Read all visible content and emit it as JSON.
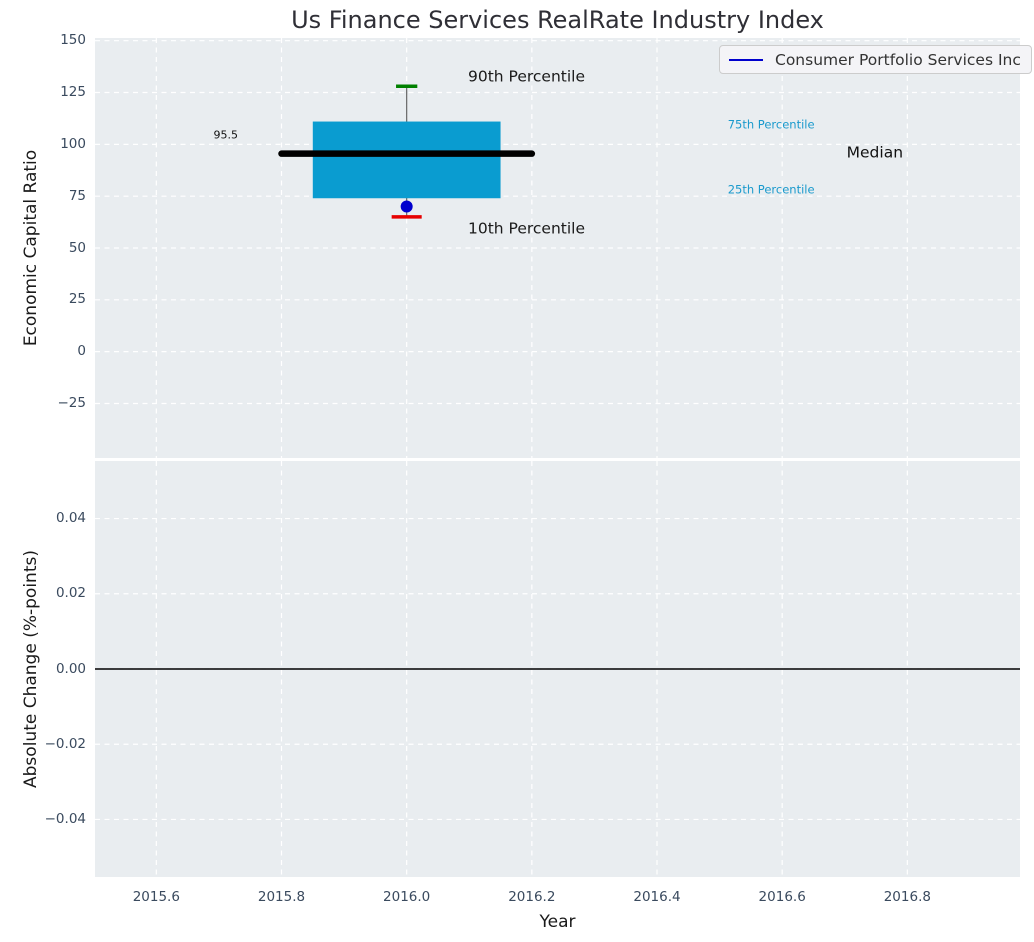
{
  "colors": {
    "figure_bg": "#ffffff",
    "axes_bg": "#e9edf0",
    "grid": "#ffffff",
    "tick_label": "#3a4a5e",
    "axis_label": "#1a1a1a",
    "title": "#2f2f36",
    "box_fill": "#0a9cd0",
    "median_line": "#000000",
    "whisker": "#666666",
    "p90_cap": "#008000",
    "p10_cap": "#e60000",
    "company_marker": "#0000cd",
    "zero_line": "#000000",
    "legend_bg": "#f4f4f7",
    "legend_border": "#cccccc",
    "legend_text": "#333333",
    "percentile_small_label": "#1a9acd",
    "annotation_dark": "#1a1a1a"
  },
  "legend": {
    "label": "Consumer Portfolio Services Inc",
    "position": "upper right"
  },
  "chart_data": {
    "type": "box",
    "title": "Us Finance Services RealRate Industry Index",
    "xlabel": "Year",
    "xlim": [
      2015.502,
      2016.98
    ],
    "x_ticks": [
      2015.6,
      2015.8,
      2016.0,
      2016.2,
      2016.4,
      2016.6,
      2016.8
    ],
    "x_tick_labels": [
      "2015.6",
      "2015.8",
      "2016.0",
      "2016.2",
      "2016.4",
      "2016.6",
      "2016.8"
    ],
    "grid": "white dashed, both axes",
    "panels": [
      {
        "name": "economic-capital-ratio",
        "ylabel": "Economic Capital Ratio",
        "ylim": [
          -51.3,
          151.3
        ],
        "y_ticks": [
          150,
          125,
          100,
          75,
          50,
          25,
          0,
          -25
        ],
        "y_tick_labels": [
          "150",
          "125",
          "100",
          "75",
          "50",
          "25",
          "0",
          "−25"
        ],
        "distribution": {
          "year": 2016.0,
          "p90": 128,
          "p75": 111,
          "median": 95.5,
          "p25": 74,
          "p10": 65,
          "company_value": 70,
          "box_half_width": 0.15,
          "median_half_width": 0.2,
          "p90_cap_half_width": 0.017,
          "p10_cap_half_width": 0.024
        },
        "annotations": [
          {
            "text": "95.5",
            "x": 2015.711,
            "y": 104.5,
            "align": "center",
            "size": "xsmall",
            "color": "#111111"
          },
          {
            "text": "90th Percentile",
            "x": 2016.098,
            "y": 132.5,
            "align": "left",
            "size": "medium",
            "color": "#1a1a1a"
          },
          {
            "text": "10th Percentile",
            "x": 2016.098,
            "y": 59.2,
            "align": "left",
            "size": "medium",
            "color": "#1a1a1a"
          },
          {
            "text": "75th Percentile",
            "x": 2016.513,
            "y": 109.2,
            "align": "left",
            "size": "small",
            "color": "#1a9acd"
          },
          {
            "text": "25th Percentile",
            "x": 2016.513,
            "y": 77.8,
            "align": "left",
            "size": "small",
            "color": "#1a9acd"
          },
          {
            "text": "Median",
            "x": 2016.703,
            "y": 96.0,
            "align": "left",
            "size": "medium",
            "color": "#111111"
          }
        ]
      },
      {
        "name": "absolute-change",
        "ylabel": "Absolute Change (%-points)",
        "ylim": [
          -0.0553,
          0.0553
        ],
        "y_ticks": [
          0.04,
          0.02,
          0.0,
          -0.02,
          -0.04
        ],
        "y_tick_labels": [
          "0.04",
          "0.02",
          "0.00",
          "−0.02",
          "−0.04"
        ],
        "zero_line": 0.0,
        "series": []
      }
    ]
  }
}
